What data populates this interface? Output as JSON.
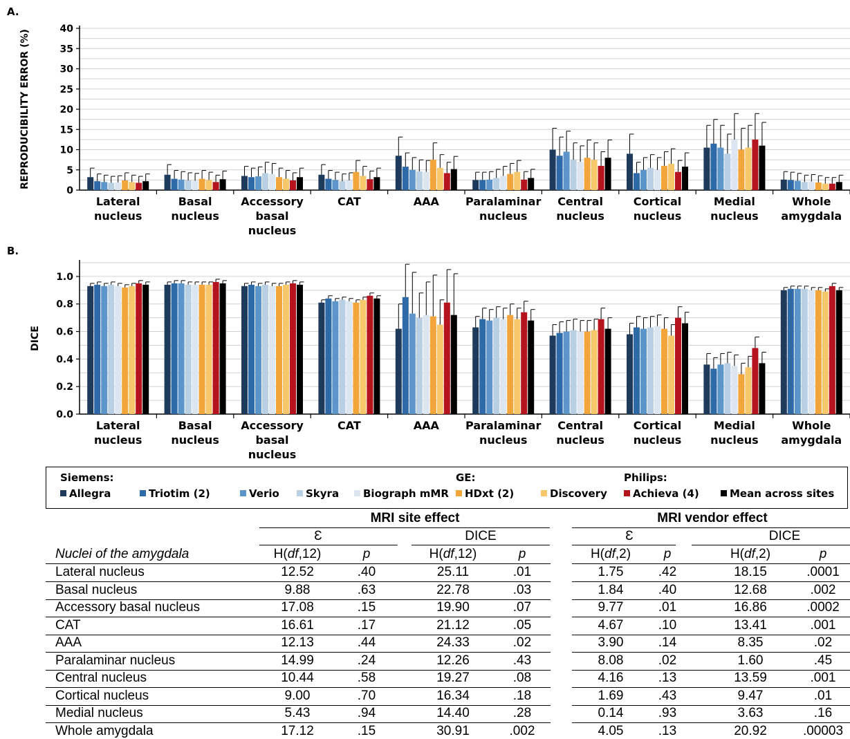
{
  "colors": {
    "Allegra": "#1f3b5c",
    "Triotim (2)": "#2e6aa8",
    "Verio": "#5b95c9",
    "Skyra": "#b9cfe3",
    "Biograph mMR": "#dbe6f1",
    "HDxt (2)": "#f2a53a",
    "Discovery": "#f7c86b",
    "Achieva (4)": "#b5141e",
    "Mean across sites": "#000000"
  },
  "chart_data": [
    {
      "type": "bar",
      "panel_label": "A.",
      "ylabel": "REPRODUCIBILITY ERROR (%)",
      "ylim": [
        0,
        40
      ],
      "yticks": [
        0,
        5,
        10,
        15,
        20,
        25,
        30,
        35,
        40
      ],
      "grid": true,
      "categories": [
        "Lateral nucleus",
        "Basal nucleus",
        "Accessory basal nucleus",
        "CAT",
        "AAA",
        "Paralaminar nucleus",
        "Central nucleus",
        "Cortical nucleus",
        "Medial nucleus",
        "Whole amygdala"
      ],
      "series": [
        {
          "name": "Allegra",
          "values": [
            3.2,
            3.8,
            3.5,
            3.8,
            8.5,
            2.5,
            10.0,
            9.0,
            10.5,
            2.6
          ]
        },
        {
          "name": "Triotim (2)",
          "values": [
            2.2,
            2.8,
            3.2,
            2.8,
            5.8,
            2.5,
            8.5,
            4.2,
            11.5,
            2.5
          ]
        },
        {
          "name": "Verio",
          "values": [
            2.0,
            2.6,
            3.4,
            2.5,
            5.0,
            2.6,
            9.5,
            5.0,
            10.5,
            2.3
          ]
        },
        {
          "name": "Skyra",
          "values": [
            1.8,
            2.4,
            4.2,
            2.2,
            4.6,
            3.0,
            7.5,
            5.5,
            9.0,
            2.0
          ]
        },
        {
          "name": "Biograph mMR",
          "values": [
            1.9,
            2.3,
            4.0,
            2.4,
            4.5,
            3.5,
            7.0,
            5.0,
            12.5,
            2.1
          ]
        },
        {
          "name": "HDxt (2)",
          "values": [
            2.4,
            2.8,
            3.2,
            4.5,
            7.5,
            4.0,
            8.0,
            6.0,
            10.0,
            1.9
          ]
        },
        {
          "name": "Discovery",
          "values": [
            2.0,
            2.5,
            2.8,
            3.5,
            5.5,
            4.5,
            7.5,
            6.5,
            10.5,
            1.6
          ]
        },
        {
          "name": "Achieva (4)",
          "values": [
            1.8,
            2.0,
            2.4,
            2.7,
            4.2,
            2.6,
            6.0,
            4.5,
            12.5,
            1.6
          ]
        },
        {
          "name": "Mean across sites",
          "values": [
            2.2,
            2.7,
            3.2,
            3.2,
            5.2,
            3.0,
            8.0,
            5.8,
            11.0,
            2.0
          ]
        }
      ]
    },
    {
      "type": "bar",
      "panel_label": "B.",
      "ylabel": "DICE",
      "ylim": [
        0,
        1.1
      ],
      "yticks": [
        "0.0",
        "0.2",
        "0.4",
        "0.6",
        "0.8",
        "1.0"
      ],
      "grid": true,
      "categories": [
        "Lateral nucleus",
        "Basal nucleus",
        "Accessory basal nucleus",
        "CAT",
        "AAA",
        "Paralaminar nucleus",
        "Central nucleus",
        "Cortical nucleus",
        "Medial nucleus",
        "Whole amygdala"
      ],
      "series": [
        {
          "name": "Allegra",
          "values": [
            0.93,
            0.94,
            0.93,
            0.81,
            0.62,
            0.63,
            0.57,
            0.58,
            0.36,
            0.9
          ]
        },
        {
          "name": "Triotim (2)",
          "values": [
            0.94,
            0.95,
            0.94,
            0.84,
            0.85,
            0.69,
            0.59,
            0.63,
            0.33,
            0.91
          ]
        },
        {
          "name": "Verio",
          "values": [
            0.93,
            0.95,
            0.93,
            0.82,
            0.73,
            0.68,
            0.6,
            0.62,
            0.36,
            0.91
          ]
        },
        {
          "name": "Skyra",
          "values": [
            0.94,
            0.94,
            0.94,
            0.83,
            0.7,
            0.7,
            0.61,
            0.63,
            0.37,
            0.91
          ]
        },
        {
          "name": "Biograph mMR",
          "values": [
            0.93,
            0.94,
            0.93,
            0.82,
            0.72,
            0.69,
            0.6,
            0.64,
            0.35,
            0.9
          ]
        },
        {
          "name": "HDxt (2)",
          "values": [
            0.92,
            0.94,
            0.93,
            0.81,
            0.71,
            0.72,
            0.6,
            0.62,
            0.29,
            0.9
          ]
        },
        {
          "name": "Discovery",
          "values": [
            0.93,
            0.94,
            0.94,
            0.83,
            0.65,
            0.69,
            0.61,
            0.57,
            0.34,
            0.89
          ]
        },
        {
          "name": "Achieva (4)",
          "values": [
            0.95,
            0.96,
            0.95,
            0.86,
            0.81,
            0.74,
            0.69,
            0.7,
            0.48,
            0.93
          ]
        },
        {
          "name": "Mean across sites",
          "values": [
            0.94,
            0.95,
            0.94,
            0.84,
            0.72,
            0.68,
            0.62,
            0.66,
            0.37,
            0.9
          ]
        }
      ]
    }
  ],
  "legend": {
    "vendors": [
      {
        "label": "Siemens:",
        "items": [
          "Allegra",
          "Triotim (2)",
          "Verio",
          "Skyra",
          "Biograph mMR"
        ]
      },
      {
        "label": "GE:",
        "items": [
          "HDxt (2)",
          "Discovery"
        ]
      },
      {
        "label": "Philips:",
        "items": [
          "Achieva (4)",
          "Mean across sites"
        ]
      }
    ]
  },
  "table": {
    "group_headers": [
      "MRI site effect",
      "MRI vendor effect"
    ],
    "sub_headers": [
      "Ɛ",
      "DICE",
      "Ɛ",
      "DICE"
    ],
    "row_header": "Nuclei of the amygdala",
    "col_stats": [
      "H(df,12)",
      "p",
      "H(df,12)",
      "p",
      "H(df,2)",
      "p",
      "H(df,2)",
      "p"
    ],
    "rows": [
      {
        "name": "Lateral nucleus",
        "values": [
          "12.52",
          ".40",
          "25.11",
          ".01",
          "1.75",
          ".42",
          "18.15",
          ".0001"
        ]
      },
      {
        "name": "Basal nucleus",
        "values": [
          "9.88",
          ".63",
          "22.78",
          ".03",
          "1.84",
          ".40",
          "12.68",
          ".002"
        ]
      },
      {
        "name": "Accessory basal nucleus",
        "values": [
          "17.08",
          ".15",
          "19.90",
          ".07",
          "9.77",
          ".01",
          "16.86",
          ".0002"
        ]
      },
      {
        "name": "CAT",
        "values": [
          "16.61",
          ".17",
          "21.12",
          ".05",
          "4.67",
          ".10",
          "13.41",
          ".001"
        ]
      },
      {
        "name": "AAA",
        "values": [
          "12.13",
          ".44",
          "24.33",
          ".02",
          "3.90",
          ".14",
          "8.35",
          ".02"
        ]
      },
      {
        "name": "Paralaminar nucleus",
        "values": [
          "14.99",
          ".24",
          "12.26",
          ".43",
          "8.08",
          ".02",
          "1.60",
          ".45"
        ]
      },
      {
        "name": "Central nucleus",
        "values": [
          "10.44",
          ".58",
          "19.27",
          ".08",
          "4.16",
          ".13",
          "13.59",
          ".001"
        ]
      },
      {
        "name": "Cortical nucleus",
        "values": [
          "9.00",
          ".70",
          "16.34",
          ".18",
          "1.69",
          ".43",
          "9.47",
          ".01"
        ]
      },
      {
        "name": "Medial nucleus",
        "values": [
          "5.43",
          ".94",
          "14.40",
          ".28",
          "0.14",
          ".93",
          "3.63",
          ".16"
        ]
      },
      {
        "name": "Whole amygdala",
        "values": [
          "17.12",
          ".15",
          "30.91",
          ".002",
          "4.05",
          ".13",
          "20.92",
          ".00003"
        ]
      }
    ]
  }
}
